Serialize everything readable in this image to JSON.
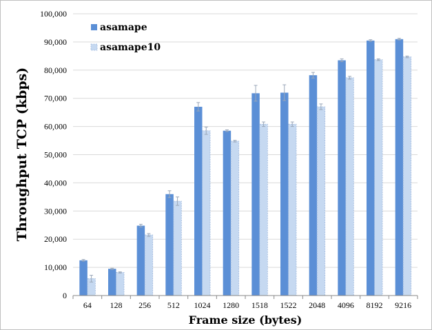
{
  "chart_data": {
    "type": "bar",
    "title": "",
    "xlabel": "Frame size (bytes)",
    "ylabel": "Throughput TCP (kbps)",
    "ylim": [
      0,
      100000
    ],
    "yticks": [
      "0",
      "10,000",
      "20,000",
      "30,000",
      "40,000",
      "50,000",
      "60,000",
      "70,000",
      "80,000",
      "90,000",
      "100,000"
    ],
    "grid": true,
    "legend_position": "top-left",
    "categories": [
      "64",
      "128",
      "256",
      "512",
      "1024",
      "1280",
      "1518",
      "1522",
      "2048",
      "4096",
      "8192",
      "9216"
    ],
    "series": [
      {
        "name": "asamape",
        "color": "#5b8fd6",
        "values": [
          12500,
          9500,
          24800,
          36000,
          67000,
          58500,
          71800,
          72000,
          78200,
          83500,
          90500,
          91000
        ],
        "errors": [
          300,
          200,
          500,
          1200,
          1500,
          300,
          2800,
          2800,
          1000,
          500,
          300,
          300
        ]
      },
      {
        "name": "asamape10",
        "color": "#c6d9f1",
        "values": [
          6000,
          8200,
          21500,
          33500,
          58500,
          54800,
          60800,
          60800,
          67000,
          77300,
          83700,
          84700
        ],
        "errors": [
          1200,
          200,
          500,
          1500,
          1300,
          300,
          800,
          800,
          1000,
          500,
          300,
          300
        ]
      }
    ]
  }
}
